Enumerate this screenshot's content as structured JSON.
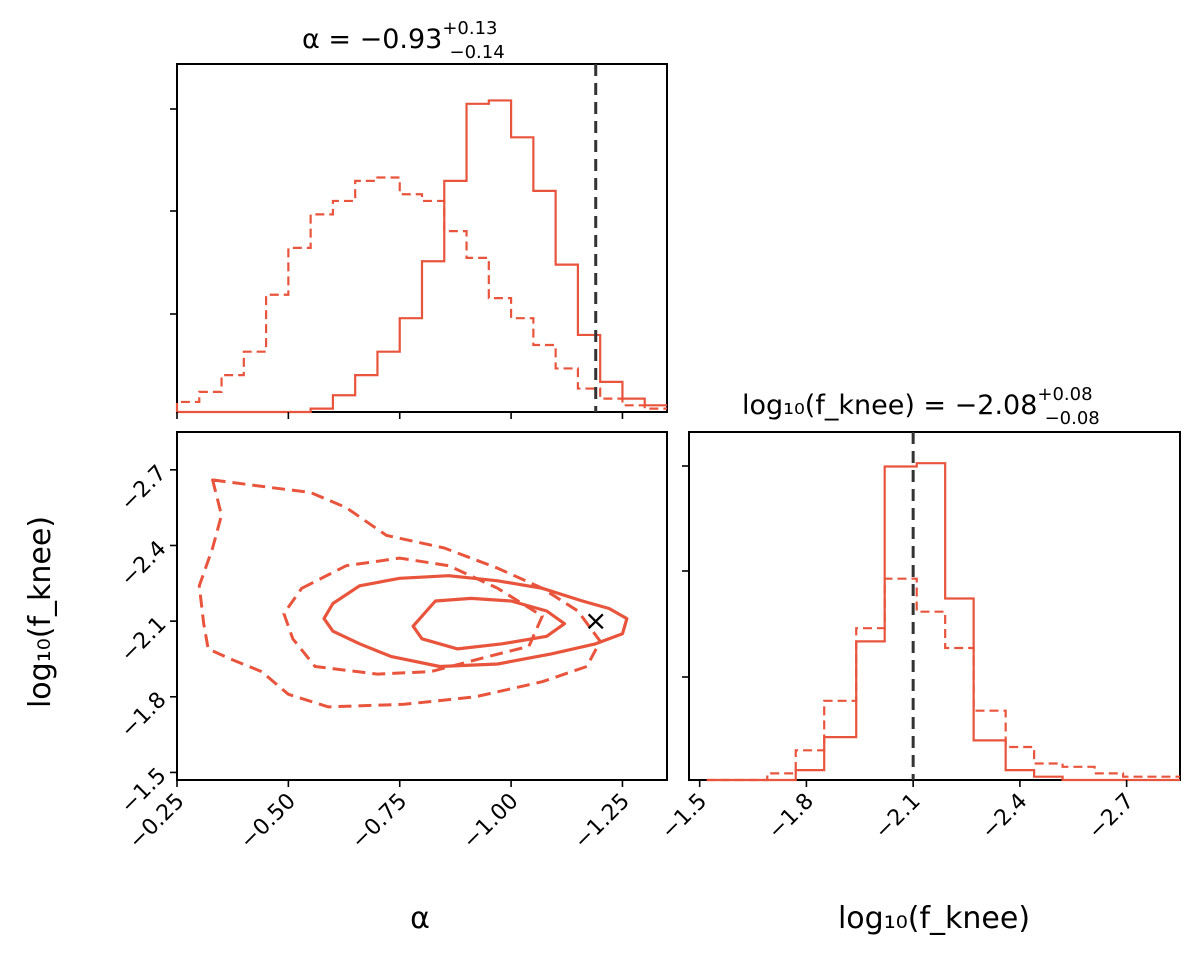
{
  "colors": {
    "series": "#e8553c",
    "truth": "#333333",
    "axes": "#000000"
  },
  "chart_data": [
    {
      "type": "histogram",
      "panel": "alpha-marginal",
      "title": {
        "label": "α = −0.93",
        "sup": "+0.13",
        "sub": "−0.14"
      },
      "parameter": "alpha",
      "xlim": [
        -0.25,
        -1.35
      ],
      "bin_edges": [
        -0.25,
        -0.3,
        -0.35,
        -0.4,
        -0.45,
        -0.5,
        -0.55,
        -0.6,
        -0.65,
        -0.7,
        -0.75,
        -0.8,
        -0.85,
        -0.9,
        -0.95,
        -1.0,
        -1.05,
        -1.1,
        -1.15,
        -1.2,
        -1.25,
        -1.3,
        -1.35
      ],
      "series": [
        {
          "name": "solid",
          "style": "solid",
          "counts": [
            0,
            0,
            0,
            0,
            0,
            0,
            0.01,
            0.05,
            0.11,
            0.18,
            0.28,
            0.45,
            0.69,
            0.92,
            0.93,
            0.82,
            0.66,
            0.44,
            0.23,
            0.09,
            0.04,
            0.02
          ]
        },
        {
          "name": "dashed",
          "style": "dashed",
          "counts": [
            0.03,
            0.06,
            0.11,
            0.18,
            0.35,
            0.49,
            0.59,
            0.63,
            0.69,
            0.7,
            0.65,
            0.63,
            0.54,
            0.46,
            0.34,
            0.28,
            0.2,
            0.13,
            0.07,
            0.04,
            0.02,
            0.01
          ]
        }
      ],
      "truth": -1.19
    },
    {
      "type": "contour",
      "panel": "joint-posterior",
      "x_parameter": "alpha",
      "y_parameter": "log10_fknee",
      "xlim": [
        -0.25,
        -1.35
      ],
      "ylim": [
        -1.47,
        -2.85
      ],
      "series": [
        {
          "name": "solid",
          "style": "solid",
          "levels": [
            [
              [
                -0.6,
                -2.17
              ],
              [
                -0.66,
                -2.24
              ],
              [
                -0.75,
                -2.27
              ],
              [
                -0.86,
                -2.28
              ],
              [
                -0.97,
                -2.26
              ],
              [
                -1.07,
                -2.23
              ],
              [
                -1.16,
                -2.18
              ],
              [
                -1.22,
                -2.15
              ],
              [
                -1.26,
                -2.11
              ],
              [
                -1.25,
                -2.05
              ],
              [
                -1.19,
                -2.01
              ],
              [
                -1.09,
                -1.97
              ],
              [
                -0.97,
                -1.93
              ],
              [
                -0.84,
                -1.92
              ],
              [
                -0.73,
                -1.96
              ],
              [
                -0.66,
                -2.01
              ],
              [
                -0.6,
                -2.06
              ],
              [
                -0.58,
                -2.11
              ]
            ],
            [
              [
                -0.83,
                -2.18
              ],
              [
                -0.91,
                -2.19
              ],
              [
                -1.0,
                -2.18
              ],
              [
                -1.08,
                -2.14
              ],
              [
                -1.12,
                -2.09
              ],
              [
                -1.08,
                -2.04
              ],
              [
                -0.98,
                -2.01
              ],
              [
                -0.88,
                -1.99
              ],
              [
                -0.8,
                -2.03
              ],
              [
                -0.78,
                -2.08
              ]
            ]
          ]
        },
        {
          "name": "dashed",
          "style": "dashed",
          "levels": [
            [
              [
                -0.33,
                -2.66
              ],
              [
                -0.46,
                -2.63
              ],
              [
                -0.55,
                -2.61
              ],
              [
                -0.63,
                -2.55
              ],
              [
                -0.72,
                -2.44
              ],
              [
                -0.85,
                -2.39
              ],
              [
                -0.97,
                -2.31
              ],
              [
                -1.07,
                -2.23
              ],
              [
                -1.15,
                -2.14
              ],
              [
                -1.2,
                -2.02
              ],
              [
                -1.17,
                -1.92
              ],
              [
                -1.07,
                -1.86
              ],
              [
                -0.92,
                -1.8
              ],
              [
                -0.76,
                -1.77
              ],
              [
                -0.59,
                -1.76
              ],
              [
                -0.5,
                -1.81
              ],
              [
                -0.44,
                -1.9
              ],
              [
                -0.37,
                -1.95
              ],
              [
                -0.32,
                -1.99
              ],
              [
                -0.31,
                -2.09
              ],
              [
                -0.3,
                -2.24
              ],
              [
                -0.33,
                -2.39
              ],
              [
                -0.35,
                -2.52
              ]
            ],
            [
              [
                -0.53,
                -2.23
              ],
              [
                -0.63,
                -2.32
              ],
              [
                -0.75,
                -2.35
              ],
              [
                -0.86,
                -2.32
              ],
              [
                -0.97,
                -2.23
              ],
              [
                -1.07,
                -2.12
              ],
              [
                -1.04,
                -2.0
              ],
              [
                -0.95,
                -1.96
              ],
              [
                -0.82,
                -1.9
              ],
              [
                -0.7,
                -1.89
              ],
              [
                -0.56,
                -1.92
              ],
              [
                -0.51,
                -2.03
              ],
              [
                -0.49,
                -2.13
              ]
            ]
          ]
        }
      ],
      "truth_point": {
        "x": -1.19,
        "y": -2.1
      }
    },
    {
      "type": "histogram",
      "panel": "fknee-marginal",
      "title": {
        "label": "log₁₀(f_knee) = −2.08",
        "sup": "+0.08",
        "sub": "−0.08"
      },
      "parameter": "log10_fknee",
      "xlim": [
        -1.47,
        -2.85
      ],
      "bin_edges": [
        -1.52,
        -1.6,
        -1.69,
        -1.77,
        -1.85,
        -1.94,
        -2.02,
        -2.11,
        -2.19,
        -2.27,
        -2.36,
        -2.44,
        -2.52,
        -2.61,
        -2.69,
        -2.77,
        -2.85
      ],
      "series": [
        {
          "name": "solid",
          "style": "solid",
          "counts": [
            0,
            0,
            0,
            0.03,
            0.13,
            0.42,
            0.95,
            0.96,
            0.55,
            0.12,
            0.03,
            0.01,
            0,
            0,
            0,
            0
          ]
        },
        {
          "name": "dashed",
          "style": "dashed",
          "counts": [
            0,
            0,
            0.02,
            0.09,
            0.24,
            0.46,
            0.61,
            0.51,
            0.4,
            0.21,
            0.1,
            0.05,
            0.04,
            0.02,
            0.01,
            0.01
          ]
        }
      ],
      "truth": -2.1
    }
  ],
  "axes": {
    "alpha": {
      "xlabel": "α",
      "ticks": [
        -0.25,
        -0.5,
        -0.75,
        -1.0,
        -1.25
      ],
      "tick_labels": [
        "−0.25",
        "−0.50",
        "−0.75",
        "−1.00",
        "−1.25"
      ]
    },
    "fknee": {
      "ylabel": "log₁₀(f_knee)",
      "ticks": [
        -2.7,
        -2.4,
        -2.1,
        -1.8,
        -1.5
      ],
      "tick_labels": [
        "−2.7",
        "−2.4",
        "−2.1",
        "−1.8",
        "−1.5"
      ],
      "x_ticks": [
        -1.5,
        -1.8,
        -2.1,
        -2.4,
        -2.7
      ],
      "x_tick_labels": [
        "−1.5",
        "−1.8",
        "−2.1",
        "−2.4",
        "−2.7"
      ]
    },
    "xlabel_fknee": "log₁₀(f_knee)",
    "truth_marker": "×"
  }
}
